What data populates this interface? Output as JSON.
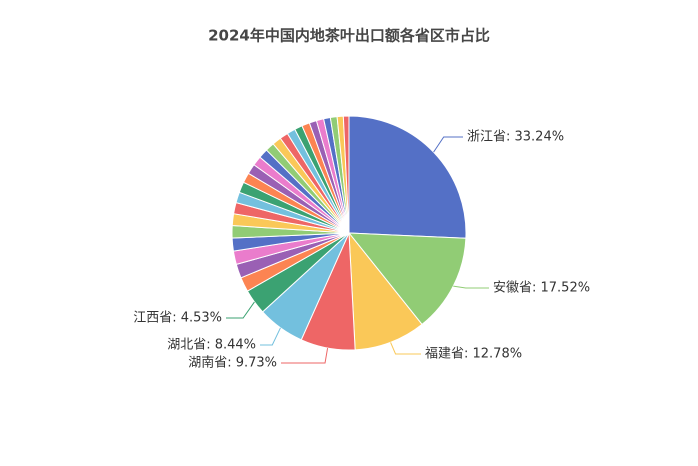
{
  "chart_data": {
    "type": "pie",
    "title": "2024年中国内地茶叶出口额各省区市占比",
    "values": [
      33.24,
      17.52,
      12.78,
      9.73,
      8.44,
      4.53,
      2.6,
      2.5,
      2.4,
      2.3,
      2.2,
      2.1,
      2.0,
      1.9,
      1.9,
      1.8,
      1.8,
      1.7,
      1.7,
      1.6,
      1.6,
      1.5,
      1.5,
      1.4,
      1.4,
      1.3,
      1.3,
      1.2,
      1.2,
      1.1,
      1.0
    ],
    "value_labels": [
      "浙江省: 33.24%",
      "安徽省: 17.52%",
      "福建省: 12.78%",
      "湖南省: 9.73%",
      "湖北省: 8.44%",
      "江西省: 4.53%",
      null,
      null,
      null,
      null,
      null,
      null,
      null,
      null,
      null,
      null,
      null,
      null,
      null,
      null,
      null,
      null,
      null,
      null,
      null,
      null,
      null,
      null,
      null,
      null,
      null
    ],
    "colors": [
      "#5470c6",
      "#91cc75",
      "#fac858",
      "#ee6666",
      "#73c0de",
      "#3ba272",
      "#fc8452",
      "#9a60b4",
      "#ea7ccc"
    ]
  }
}
